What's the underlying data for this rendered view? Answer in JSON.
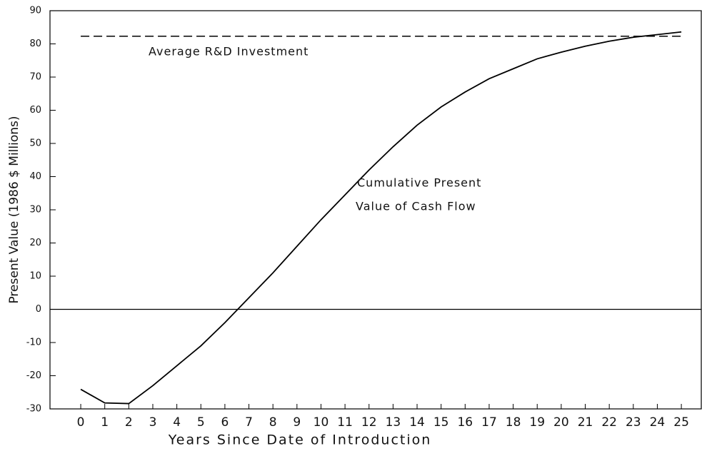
{
  "chart_data": {
    "type": "line",
    "x": [
      0,
      1,
      2,
      3,
      4,
      5,
      6,
      7,
      8,
      9,
      10,
      11,
      12,
      13,
      14,
      15,
      16,
      17,
      18,
      19,
      20,
      21,
      22,
      23,
      24,
      25
    ],
    "series": [
      {
        "color": "#000000",
        "values": [
          -24.1,
          -28.2,
          -28.4,
          -23,
          -17,
          -11,
          -4,
          3.5,
          11,
          19,
          27,
          34.5,
          42,
          49,
          55.5,
          61,
          65.5,
          69.5,
          72.5,
          75.5,
          77.5,
          79.3,
          80.8,
          82,
          82.8,
          83.6
        ]
      }
    ],
    "hlines": [
      {
        "value": 82.3,
        "style": "dashed"
      },
      {
        "value": 0,
        "style": "solid"
      }
    ],
    "annotations": [
      "Average R&D Investment",
      "Cumulative Present",
      "Value of Cash Flow"
    ],
    "xlabel": "Years Since Date of Introduction",
    "ylabel": "Present Value (1986 $ Millions)",
    "xlim": [
      -1.28,
      25.83
    ],
    "ylim": [
      -30,
      90
    ],
    "xticks": [
      0,
      1,
      2,
      3,
      4,
      5,
      6,
      7,
      8,
      9,
      10,
      11,
      12,
      13,
      14,
      15,
      16,
      17,
      18,
      19,
      20,
      21,
      22,
      23,
      24,
      25
    ],
    "yticks": [
      -30,
      -20,
      -10,
      0,
      10,
      20,
      30,
      40,
      50,
      60,
      70,
      80,
      90
    ],
    "grid": false
  }
}
